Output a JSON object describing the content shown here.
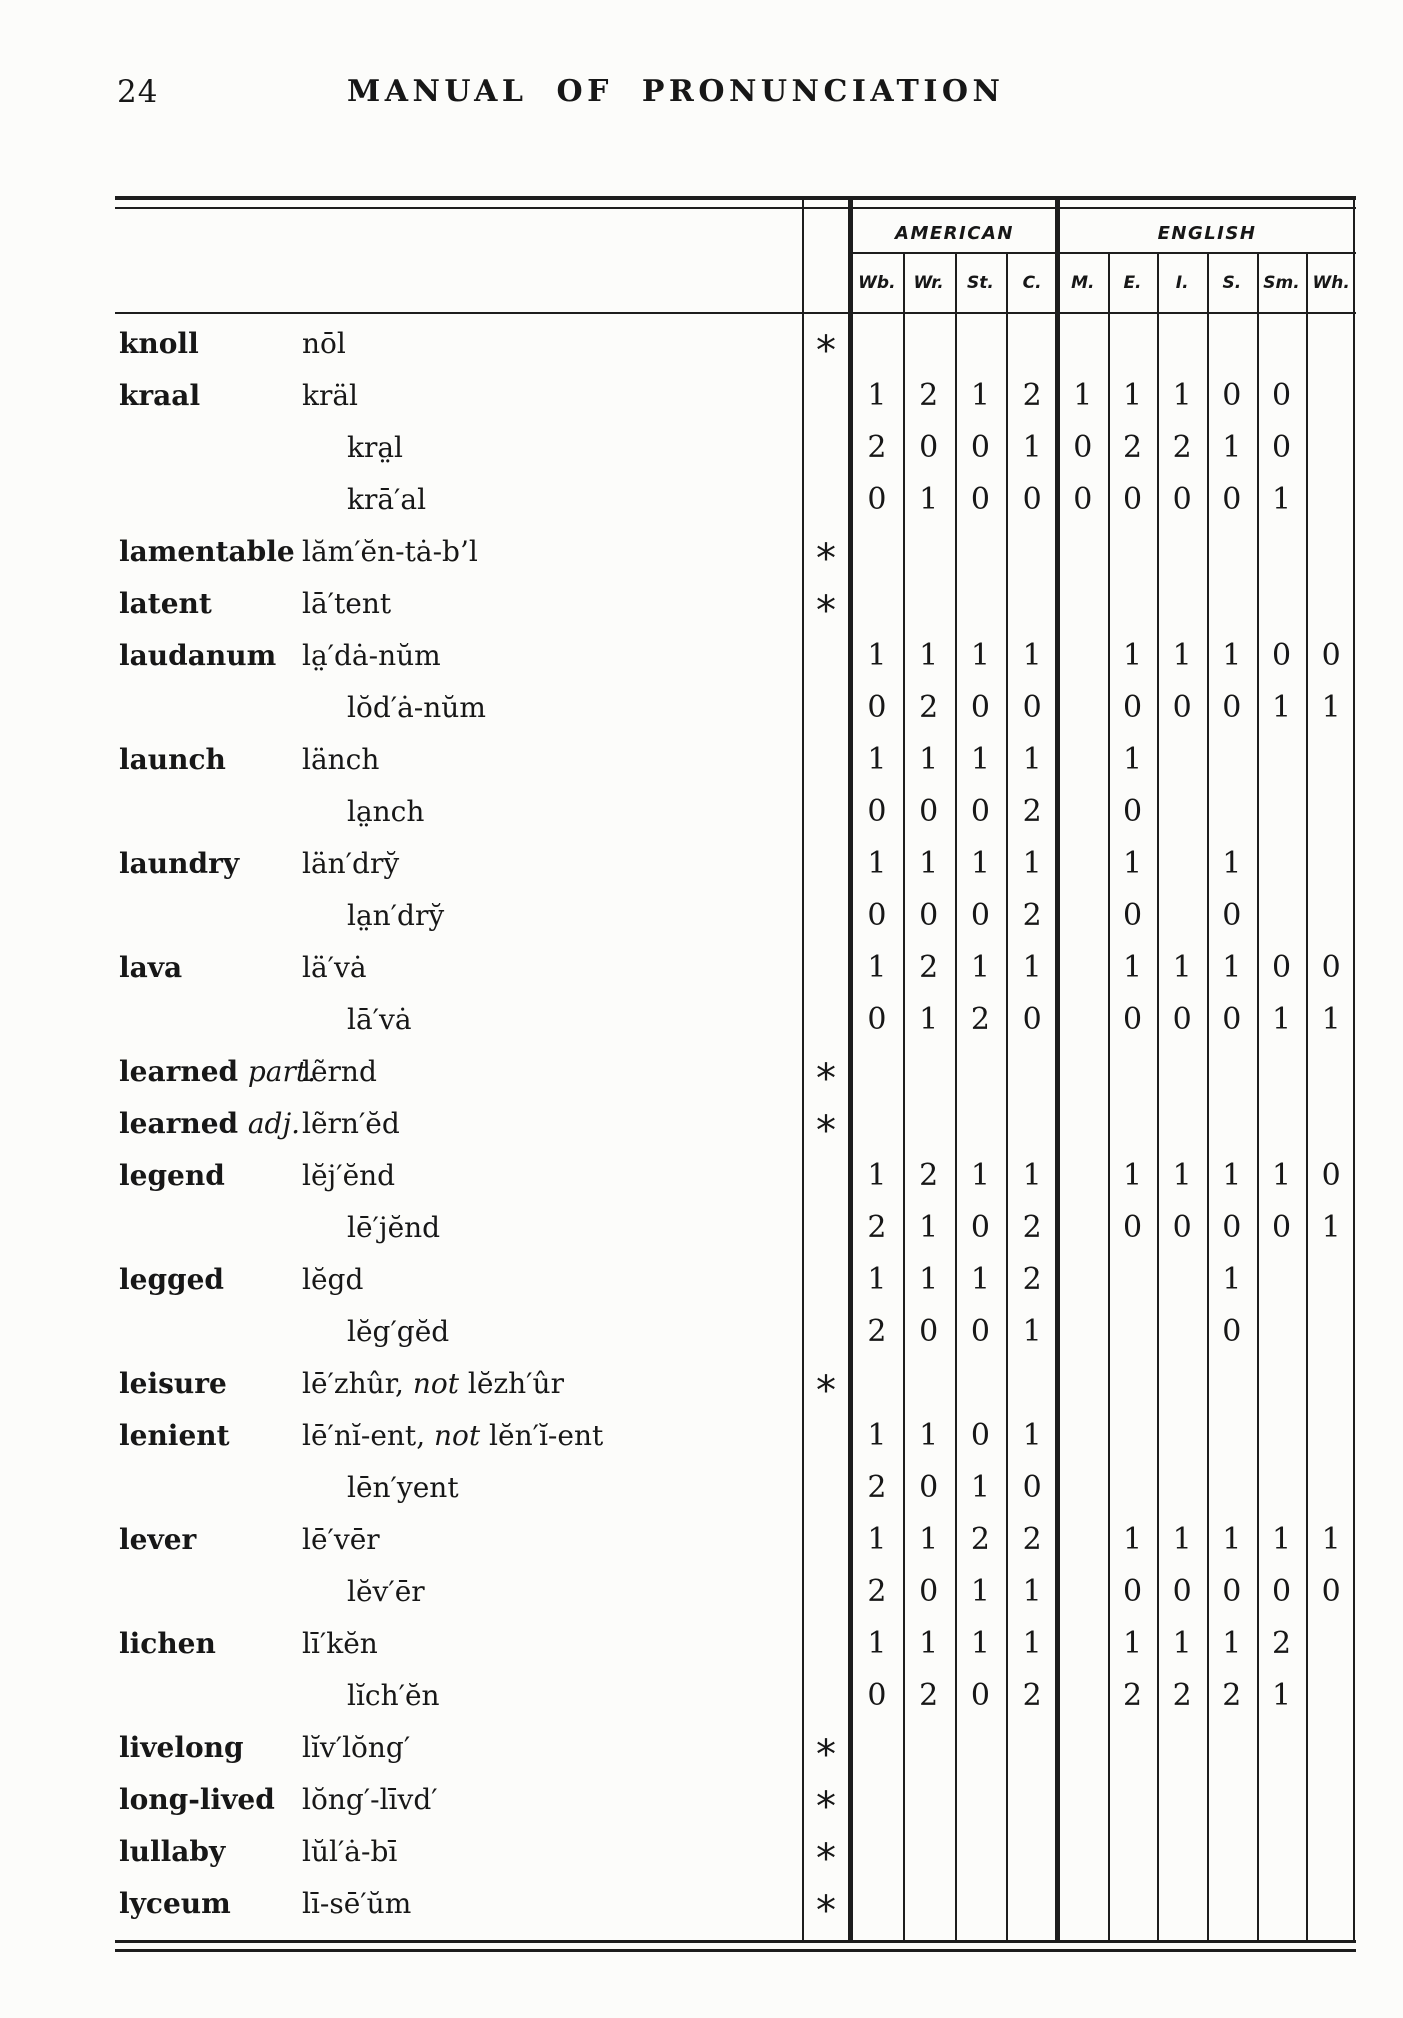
{
  "page": {
    "number": "24",
    "title": "MANUAL OF PRONUNCIATION"
  },
  "table": {
    "asterisk": "*",
    "groups": {
      "american": "AMERICAN",
      "english": "ENGLISH"
    },
    "american_cols": [
      "Wb.",
      "Wr.",
      "St.",
      "C."
    ],
    "english_cols": [
      "M.",
      "E.",
      "I.",
      "S.",
      "Sm.",
      "Wh."
    ],
    "rows": [
      {
        "word": "knoll",
        "pron": "nōl",
        "star": true
      },
      {
        "word": "kraal",
        "pron": "kräl",
        "am": [
          "1",
          "2",
          "1",
          "2"
        ],
        "en": [
          "1",
          "1",
          "1",
          "0",
          "0",
          ""
        ]
      },
      {
        "pron": "kra̤l",
        "indent": true,
        "am": [
          "2",
          "0",
          "0",
          "1"
        ],
        "en": [
          "0",
          "2",
          "2",
          "1",
          "0",
          ""
        ]
      },
      {
        "pron": "krā′al",
        "indent": true,
        "am": [
          "0",
          "1",
          "0",
          "0"
        ],
        "en": [
          "0",
          "0",
          "0",
          "0",
          "1",
          ""
        ]
      },
      {
        "word": "lamentable",
        "pron": "lăm′ĕn-tȧ-b’l",
        "star": true
      },
      {
        "word": "latent",
        "pron": "lā′tent",
        "star": true
      },
      {
        "word": "laudanum",
        "pron": "la̤′dȧ-nŭm",
        "am": [
          "1",
          "1",
          "1",
          "1"
        ],
        "en": [
          "",
          "1",
          "1",
          "1",
          "0",
          "0"
        ]
      },
      {
        "pron": "lŏd′ȧ-nŭm",
        "indent": true,
        "am": [
          "0",
          "2",
          "0",
          "0"
        ],
        "en": [
          "",
          "0",
          "0",
          "0",
          "1",
          "1"
        ]
      },
      {
        "word": "launch",
        "pron": "länch",
        "am": [
          "1",
          "1",
          "1",
          "1"
        ],
        "en": [
          "",
          "1",
          "",
          "",
          "",
          ""
        ]
      },
      {
        "pron": "la̤nch",
        "indent": true,
        "am": [
          "0",
          "0",
          "0",
          "2"
        ],
        "en": [
          "",
          "0",
          "",
          "",
          "",
          ""
        ]
      },
      {
        "word": "laundry",
        "pron": "län′dry̆",
        "am": [
          "1",
          "1",
          "1",
          "1"
        ],
        "en": [
          "",
          "1",
          "",
          "1",
          "",
          ""
        ]
      },
      {
        "pron": "la̤n′dry̆",
        "indent": true,
        "am": [
          "0",
          "0",
          "0",
          "2"
        ],
        "en": [
          "",
          "0",
          "",
          "0",
          "",
          ""
        ]
      },
      {
        "word": "lava",
        "pron": "lä′vȧ",
        "am": [
          "1",
          "2",
          "1",
          "1"
        ],
        "en": [
          "",
          "1",
          "1",
          "1",
          "0",
          "0"
        ]
      },
      {
        "pron": "lā′vȧ",
        "indent": true,
        "am": [
          "0",
          "1",
          "2",
          "0"
        ],
        "en": [
          "",
          "0",
          "0",
          "0",
          "1",
          "1"
        ]
      },
      {
        "word": "learned |part.|",
        "pron": "lẽrnd",
        "star": true
      },
      {
        "word": "learned |adj.|",
        "pron": "lẽrn′ĕd",
        "star": true
      },
      {
        "word": "legend",
        "pron": "lĕj′ĕnd",
        "am": [
          "1",
          "2",
          "1",
          "1"
        ],
        "en": [
          "",
          "1",
          "1",
          "1",
          "1",
          "0"
        ]
      },
      {
        "pron": "lē′jĕnd",
        "indent": true,
        "am": [
          "2",
          "1",
          "0",
          "2"
        ],
        "en": [
          "",
          "0",
          "0",
          "0",
          "0",
          "1"
        ]
      },
      {
        "word": "legged",
        "pron": "lĕgd",
        "am": [
          "1",
          "1",
          "1",
          "2"
        ],
        "en": [
          "",
          "",
          "",
          "1",
          "",
          ""
        ]
      },
      {
        "pron": "lĕg′gĕd",
        "indent": true,
        "am": [
          "2",
          "0",
          "0",
          "1"
        ],
        "en": [
          "",
          "",
          "",
          "0",
          "",
          ""
        ]
      },
      {
        "word": "leisure",
        "pron": "lē′zhûr, |not| lĕzh′ûr",
        "star": true
      },
      {
        "word": "lenient",
        "pron": "lē′nĭ-ent, |not| lĕn′ĭ-ent",
        "am": [
          "1",
          "1",
          "0",
          "1"
        ]
      },
      {
        "pron": "lēn′yent",
        "indent": true,
        "am": [
          "2",
          "0",
          "1",
          "0"
        ]
      },
      {
        "word": "lever",
        "pron": "lē′vēr",
        "am": [
          "1",
          "1",
          "2",
          "2"
        ],
        "en": [
          "",
          "1",
          "1",
          "1",
          "1",
          "1"
        ]
      },
      {
        "pron": "lĕv′ēr",
        "indent": true,
        "am": [
          "2",
          "0",
          "1",
          "1"
        ],
        "en": [
          "",
          "0",
          "0",
          "0",
          "0",
          "0"
        ]
      },
      {
        "word": "lichen",
        "pron": "lī′kĕn",
        "am": [
          "1",
          "1",
          "1",
          "1"
        ],
        "en": [
          "",
          "1",
          "1",
          "1",
          "2",
          ""
        ]
      },
      {
        "pron": "lĭch′ĕn",
        "indent": true,
        "am": [
          "0",
          "2",
          "0",
          "2"
        ],
        "en": [
          "",
          "2",
          "2",
          "2",
          "1",
          ""
        ]
      },
      {
        "word": "livelong",
        "pron": "lĭv′lŏng′",
        "star": true
      },
      {
        "word": "long-lived",
        "pron": "lŏng′-līvd′",
        "star": true
      },
      {
        "word": "lullaby",
        "pron": "lŭl′ȧ-bī",
        "star": true
      },
      {
        "word": "lyceum",
        "pron": "lī-sē′ŭm",
        "star": true
      }
    ]
  }
}
